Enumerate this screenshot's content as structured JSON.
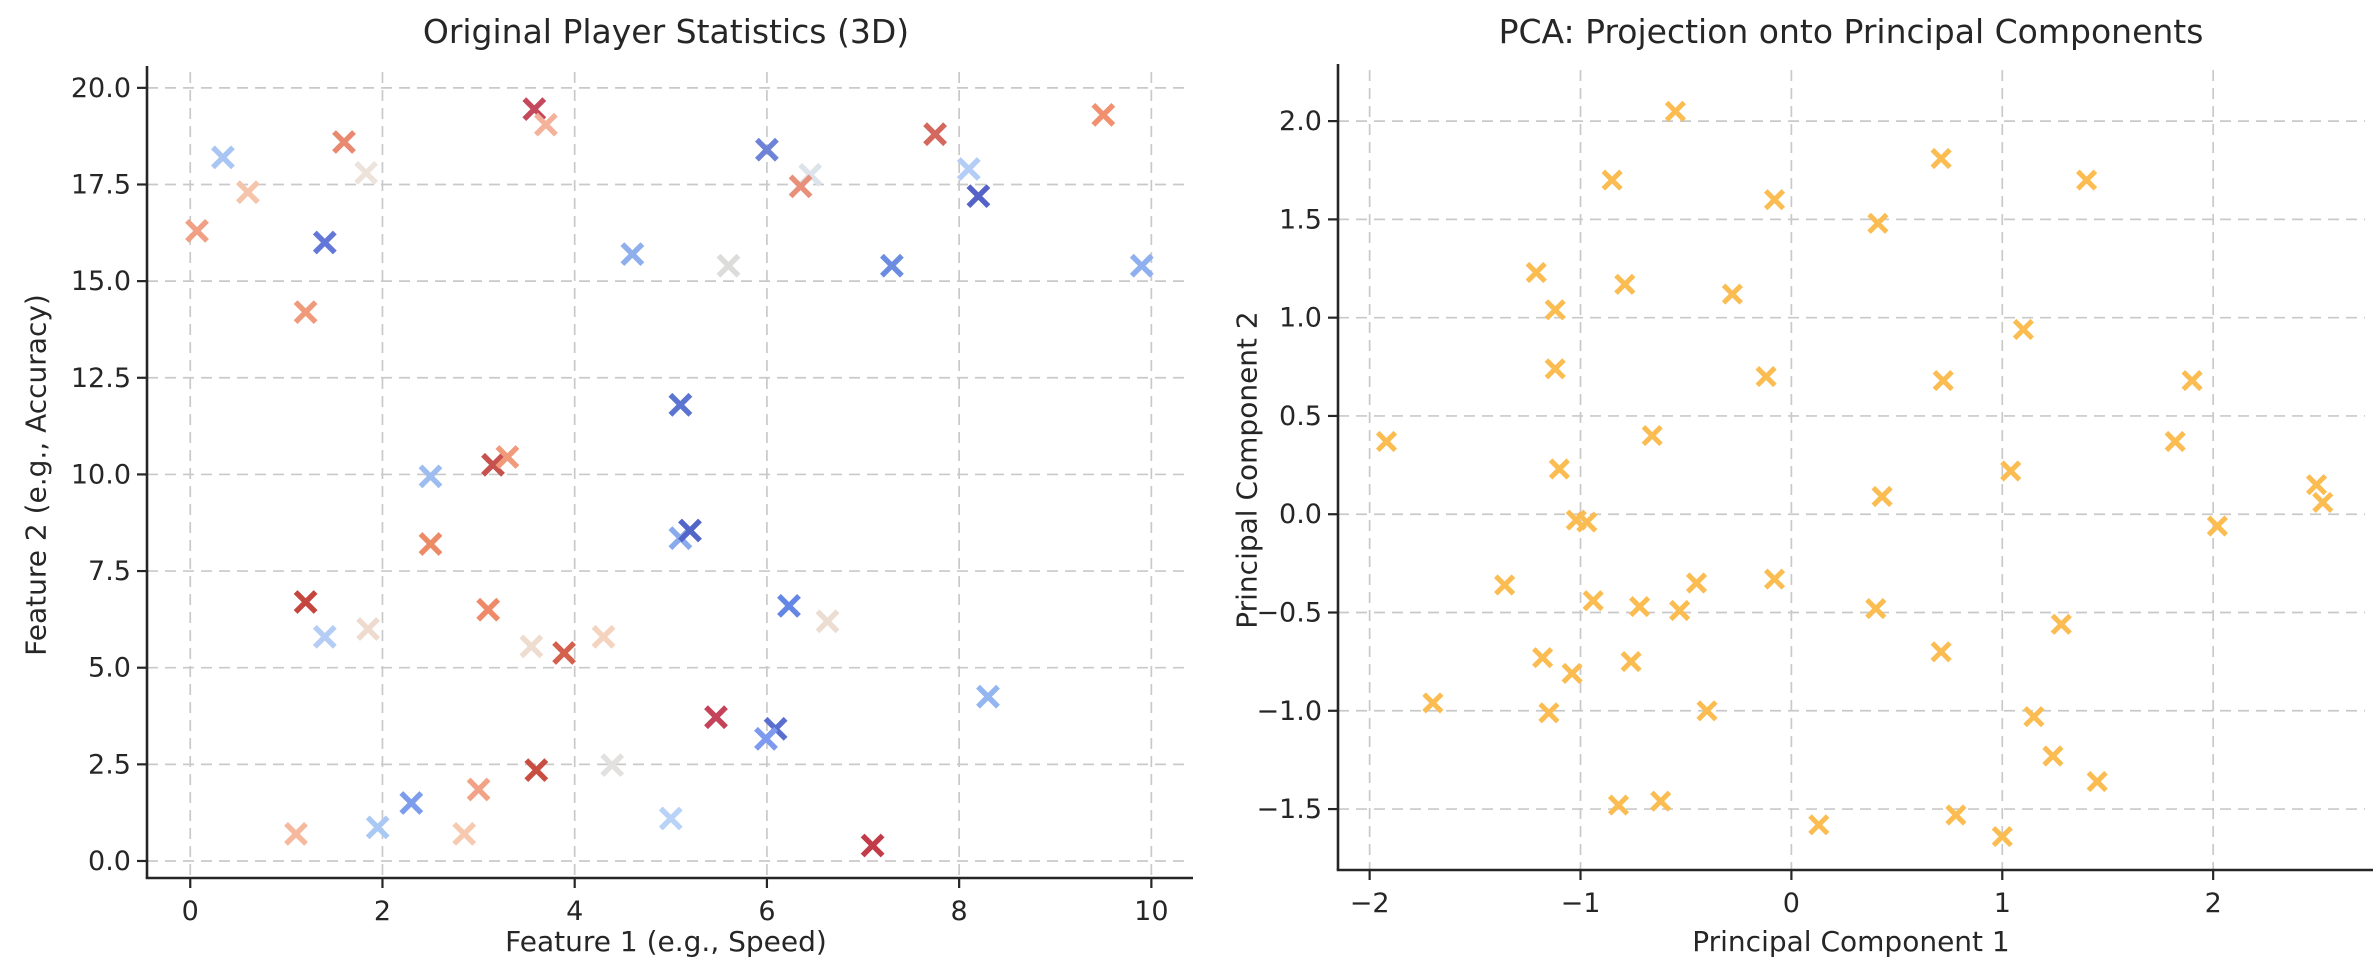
{
  "figure": {
    "background": "#ffffff"
  },
  "chart_data": [
    {
      "type": "scatter",
      "title": "Original Player Statistics (3D)",
      "xlabel": "Feature 1 (e.g., Speed)",
      "ylabel": "Feature 2 (e.g., Accuracy)",
      "xlim": [
        -0.45,
        10.35
      ],
      "ylim": [
        -0.44,
        20.41
      ],
      "grid": true,
      "legend": "none",
      "marker": "x",
      "color_encoding": "third feature via coolwarm colormap (blue = low, red = high)",
      "xticks": [
        {
          "v": 0,
          "label": "0"
        },
        {
          "v": 2,
          "label": "2"
        },
        {
          "v": 4,
          "label": "4"
        },
        {
          "v": 6,
          "label": "6"
        },
        {
          "v": 8,
          "label": "8"
        },
        {
          "v": 10,
          "label": "10"
        }
      ],
      "yticks": [
        {
          "v": 0,
          "label": "0.0"
        },
        {
          "v": 2.5,
          "label": "2.5"
        },
        {
          "v": 5,
          "label": "5.0"
        },
        {
          "v": 7.5,
          "label": "7.5"
        },
        {
          "v": 10,
          "label": "10.0"
        },
        {
          "v": 12.5,
          "label": "12.5"
        },
        {
          "v": 15,
          "label": "15.0"
        },
        {
          "v": 17.5,
          "label": "17.5"
        },
        {
          "v": 20,
          "label": "20.0"
        }
      ],
      "points": [
        {
          "x": 0.34,
          "y": 18.2,
          "color": "#a9c5f4"
        },
        {
          "x": 0.6,
          "y": 17.3,
          "color": "#f4c5ab"
        },
        {
          "x": 1.6,
          "y": 18.6,
          "color": "#e98a70"
        },
        {
          "x": 1.83,
          "y": 17.8,
          "color": "#eee3da"
        },
        {
          "x": 3.58,
          "y": 19.45,
          "color": "#c4495c"
        },
        {
          "x": 3.7,
          "y": 19.05,
          "color": "#f5b29a"
        },
        {
          "x": 0.07,
          "y": 16.3,
          "color": "#f0a084"
        },
        {
          "x": 1.4,
          "y": 16.0,
          "color": "#6377d8"
        },
        {
          "x": 4.6,
          "y": 15.7,
          "color": "#8fafec"
        },
        {
          "x": 1.2,
          "y": 14.2,
          "color": "#f09a7c"
        },
        {
          "x": 6.0,
          "y": 18.4,
          "color": "#6e82d8"
        },
        {
          "x": 6.45,
          "y": 17.75,
          "color": "#dde3ea"
        },
        {
          "x": 6.35,
          "y": 17.45,
          "color": "#e8907a"
        },
        {
          "x": 7.75,
          "y": 18.8,
          "color": "#d4685e"
        },
        {
          "x": 9.5,
          "y": 19.3,
          "color": "#f0906e"
        },
        {
          "x": 8.1,
          "y": 17.9,
          "color": "#b3cdf6"
        },
        {
          "x": 8.2,
          "y": 17.2,
          "color": "#5562c6"
        },
        {
          "x": 5.6,
          "y": 15.4,
          "color": "#dcdcda"
        },
        {
          "x": 7.3,
          "y": 15.4,
          "color": "#6b8ce0"
        },
        {
          "x": 9.9,
          "y": 15.4,
          "color": "#8fb0ee"
        },
        {
          "x": 5.1,
          "y": 11.8,
          "color": "#5a74d0"
        },
        {
          "x": 2.5,
          "y": 9.95,
          "color": "#9dbcf0"
        },
        {
          "x": 3.15,
          "y": 10.25,
          "color": "#c5524e"
        },
        {
          "x": 3.3,
          "y": 10.45,
          "color": "#f0997b"
        },
        {
          "x": 2.5,
          "y": 8.2,
          "color": "#ec8a66"
        },
        {
          "x": 1.2,
          "y": 6.7,
          "color": "#c5463f"
        },
        {
          "x": 1.4,
          "y": 5.8,
          "color": "#b5cdf4"
        },
        {
          "x": 1.85,
          "y": 6.0,
          "color": "#eedbce"
        },
        {
          "x": 3.1,
          "y": 6.5,
          "color": "#ef8a68"
        },
        {
          "x": 3.55,
          "y": 5.55,
          "color": "#eedccf"
        },
        {
          "x": 3.89,
          "y": 5.38,
          "color": "#d4604e"
        },
        {
          "x": 4.3,
          "y": 5.8,
          "color": "#f5d4bf"
        },
        {
          "x": 4.39,
          "y": 2.48,
          "color": "#e3e1df"
        },
        {
          "x": 3.6,
          "y": 2.35,
          "color": "#c84e42"
        },
        {
          "x": 3.0,
          "y": 1.85,
          "color": "#f2a286"
        },
        {
          "x": 2.3,
          "y": 1.5,
          "color": "#7d9cec"
        },
        {
          "x": 1.95,
          "y": 0.87,
          "color": "#a9c8f4"
        },
        {
          "x": 1.1,
          "y": 0.7,
          "color": "#f6b99d"
        },
        {
          "x": 2.85,
          "y": 0.7,
          "color": "#f7c9ae"
        },
        {
          "x": 5.1,
          "y": 8.35,
          "color": "#8aaaee"
        },
        {
          "x": 5.2,
          "y": 8.55,
          "color": "#5166c8"
        },
        {
          "x": 6.23,
          "y": 6.6,
          "color": "#6487e6"
        },
        {
          "x": 6.63,
          "y": 6.2,
          "color": "#ecddd3"
        },
        {
          "x": 8.3,
          "y": 4.25,
          "color": "#93b5f0"
        },
        {
          "x": 5.47,
          "y": 3.72,
          "color": "#c4425a"
        },
        {
          "x": 6.09,
          "y": 3.42,
          "color": "#5a6ed0"
        },
        {
          "x": 5.99,
          "y": 3.16,
          "color": "#7d9af0"
        },
        {
          "x": 5.0,
          "y": 1.1,
          "color": "#b9d2f8"
        },
        {
          "x": 7.1,
          "y": 0.4,
          "color": "#c23b49"
        }
      ]
    },
    {
      "type": "scatter",
      "title": "PCA: Projection onto Principal Components",
      "xlabel": "Principal Component 1",
      "ylabel": "Principal Component 2",
      "xlim": [
        -2.15,
        2.72
      ],
      "ylim": [
        -1.81,
        2.26
      ],
      "grid": true,
      "legend": "none",
      "marker": "x",
      "marker_color": "#fbbc51",
      "xticks": [
        {
          "v": -2,
          "label": "−2"
        },
        {
          "v": -1,
          "label": "−1"
        },
        {
          "v": 0,
          "label": "0"
        },
        {
          "v": 1,
          "label": "1"
        },
        {
          "v": 2,
          "label": "2"
        }
      ],
      "yticks": [
        {
          "v": -1.5,
          "label": "−1.5"
        },
        {
          "v": -1.0,
          "label": "−1.0"
        },
        {
          "v": -0.5,
          "label": "−0.5"
        },
        {
          "v": 0.0,
          "label": "0.0"
        },
        {
          "v": 0.5,
          "label": "0.5"
        },
        {
          "v": 1.0,
          "label": "1.0"
        },
        {
          "v": 1.5,
          "label": "1.5"
        },
        {
          "v": 2.0,
          "label": "2.0"
        }
      ],
      "points": [
        {
          "x": -0.55,
          "y": 2.05
        },
        {
          "x": -0.85,
          "y": 1.7
        },
        {
          "x": -0.08,
          "y": 1.6
        },
        {
          "x": -1.21,
          "y": 1.23
        },
        {
          "x": -0.79,
          "y": 1.17
        },
        {
          "x": -0.28,
          "y": 1.12
        },
        {
          "x": -1.12,
          "y": 1.04
        },
        {
          "x": -1.12,
          "y": 0.74
        },
        {
          "x": -0.12,
          "y": 0.7
        },
        {
          "x": -1.92,
          "y": 0.37
        },
        {
          "x": -0.66,
          "y": 0.4
        },
        {
          "x": -1.1,
          "y": 0.23
        },
        {
          "x": 0.71,
          "y": 1.81
        },
        {
          "x": 1.4,
          "y": 1.7
        },
        {
          "x": 0.41,
          "y": 1.48
        },
        {
          "x": 1.1,
          "y": 0.94
        },
        {
          "x": 0.72,
          "y": 0.68
        },
        {
          "x": 1.9,
          "y": 0.68
        },
        {
          "x": 1.82,
          "y": 0.37
        },
        {
          "x": 1.04,
          "y": 0.22
        },
        {
          "x": -1.02,
          "y": -0.03
        },
        {
          "x": -0.97,
          "y": -0.04
        },
        {
          "x": -1.36,
          "y": -0.36
        },
        {
          "x": -0.94,
          "y": -0.44
        },
        {
          "x": -0.72,
          "y": -0.47
        },
        {
          "x": -0.53,
          "y": -0.49
        },
        {
          "x": -0.45,
          "y": -0.35
        },
        {
          "x": -0.08,
          "y": -0.33
        },
        {
          "x": -1.18,
          "y": -0.73
        },
        {
          "x": -1.04,
          "y": -0.81
        },
        {
          "x": -0.76,
          "y": -0.75
        },
        {
          "x": -1.7,
          "y": -0.96
        },
        {
          "x": -1.15,
          "y": -1.01
        },
        {
          "x": -0.4,
          "y": -1.0
        },
        {
          "x": -0.82,
          "y": -1.48
        },
        {
          "x": -0.62,
          "y": -1.46
        },
        {
          "x": 0.13,
          "y": -1.58
        },
        {
          "x": 0.43,
          "y": 0.09
        },
        {
          "x": 2.49,
          "y": 0.15
        },
        {
          "x": 2.52,
          "y": 0.06
        },
        {
          "x": 2.02,
          "y": -0.06
        },
        {
          "x": 0.4,
          "y": -0.48
        },
        {
          "x": 1.28,
          "y": -0.56
        },
        {
          "x": 0.71,
          "y": -0.7
        },
        {
          "x": 1.15,
          "y": -1.03
        },
        {
          "x": 1.24,
          "y": -1.23
        },
        {
          "x": 1.45,
          "y": -1.36
        },
        {
          "x": 0.78,
          "y": -1.53
        },
        {
          "x": 1.0,
          "y": -1.64
        }
      ]
    }
  ]
}
